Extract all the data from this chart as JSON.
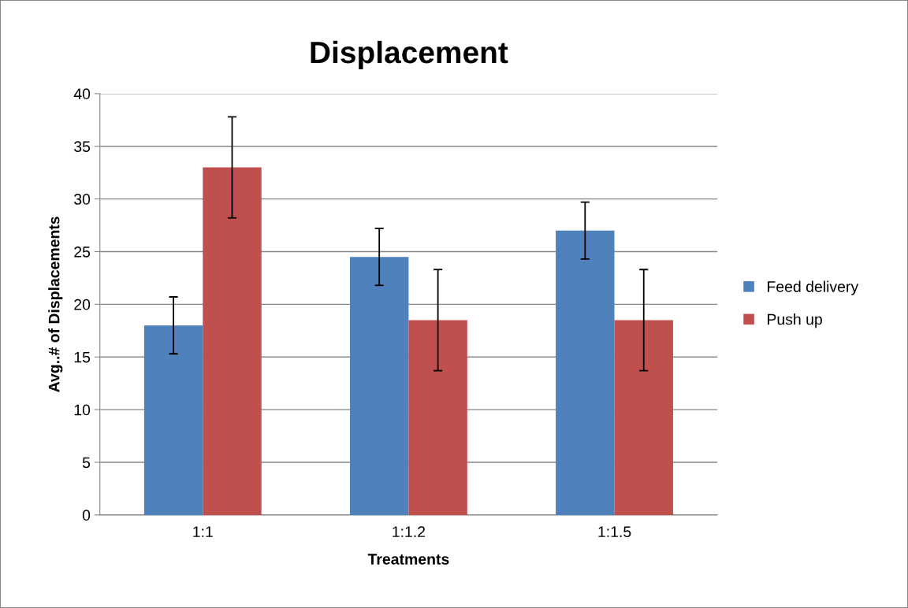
{
  "chart_data": {
    "type": "bar",
    "title": "Displacement",
    "xlabel": "Treatments",
    "ylabel": "Avg..# of Displacements",
    "categories": [
      "1:1",
      "1:1.2",
      "1:1.5"
    ],
    "series": [
      {
        "name": "Feed delivery",
        "color": "#4f81bd",
        "values": [
          18,
          24.5,
          27
        ],
        "errors": [
          2.7,
          2.7,
          2.7
        ]
      },
      {
        "name": "Push up",
        "color": "#c0504d",
        "values": [
          33,
          18.5,
          18.5
        ],
        "errors": [
          4.8,
          4.8,
          4.8
        ]
      }
    ],
    "ylim": [
      0,
      40
    ],
    "yticks": [
      0,
      5,
      10,
      15,
      20,
      25,
      30,
      35,
      40
    ],
    "grid": "y",
    "legend": "right"
  }
}
